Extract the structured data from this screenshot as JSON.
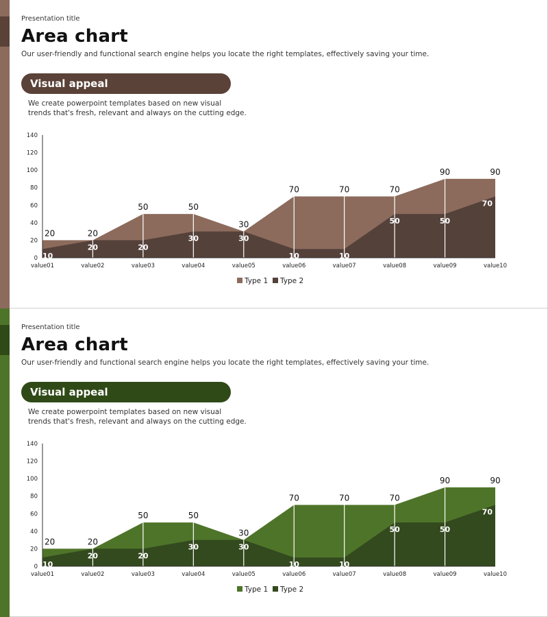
{
  "slides": [
    {
      "id": "brown",
      "presentation_title": "Presentation title",
      "title": "Area chart",
      "subtitle": "Our user-friendly and functional search engine helps you locate the right templates, effectively saving your time.",
      "pill_label": "Visual appeal",
      "description_line1": "We create powerpoint templates based on new visual",
      "description_line2": "trends that's fresh, relevant and always on the cutting edge.",
      "colors": {
        "bar": "#8c6b5c",
        "bar_dark": "#5a4239",
        "pill": "#5a4239",
        "type1": "#8c6b5c",
        "type2": "#54413a"
      }
    },
    {
      "id": "green",
      "presentation_title": "Presentation title",
      "title": "Area chart",
      "subtitle": "Our user-friendly and functional search engine helps you locate the right templates, effectively saving your time.",
      "pill_label": "Visual appeal",
      "description_line1": "We create powerpoint templates based on new visual",
      "description_line2": "trends that's fresh, relevant and always on the cutting edge.",
      "colors": {
        "bar": "#4e7429",
        "bar_dark": "#2f4a17",
        "pill": "#2f4a17",
        "type1": "#4e7429",
        "type2": "#33491e"
      }
    }
  ],
  "chart_data": [
    {
      "type": "area",
      "categories": [
        "value01",
        "value02",
        "value03",
        "value04",
        "value05",
        "value06",
        "value07",
        "value08",
        "value09",
        "value10"
      ],
      "series": [
        {
          "name": "Type 1",
          "values": [
            20,
            20,
            50,
            50,
            30,
            70,
            70,
            70,
            90,
            90
          ]
        },
        {
          "name": "Type 2",
          "values": [
            10,
            20,
            20,
            30,
            30,
            10,
            10,
            50,
            50,
            70
          ]
        }
      ],
      "yticks": [
        0,
        20,
        40,
        60,
        80,
        100,
        120,
        140
      ],
      "ylim": [
        0,
        140
      ],
      "legend": "bottom",
      "grid": false
    },
    {
      "type": "area",
      "categories": [
        "value01",
        "value02",
        "value03",
        "value04",
        "value05",
        "value06",
        "value07",
        "value08",
        "value09",
        "value10"
      ],
      "series": [
        {
          "name": "Type 1",
          "values": [
            20,
            20,
            50,
            50,
            30,
            70,
            70,
            70,
            90,
            90
          ]
        },
        {
          "name": "Type 2",
          "values": [
            10,
            20,
            20,
            30,
            30,
            10,
            10,
            50,
            50,
            70
          ]
        }
      ],
      "yticks": [
        0,
        20,
        40,
        60,
        80,
        100,
        120,
        140
      ],
      "ylim": [
        0,
        140
      ],
      "legend": "bottom",
      "grid": false
    }
  ]
}
